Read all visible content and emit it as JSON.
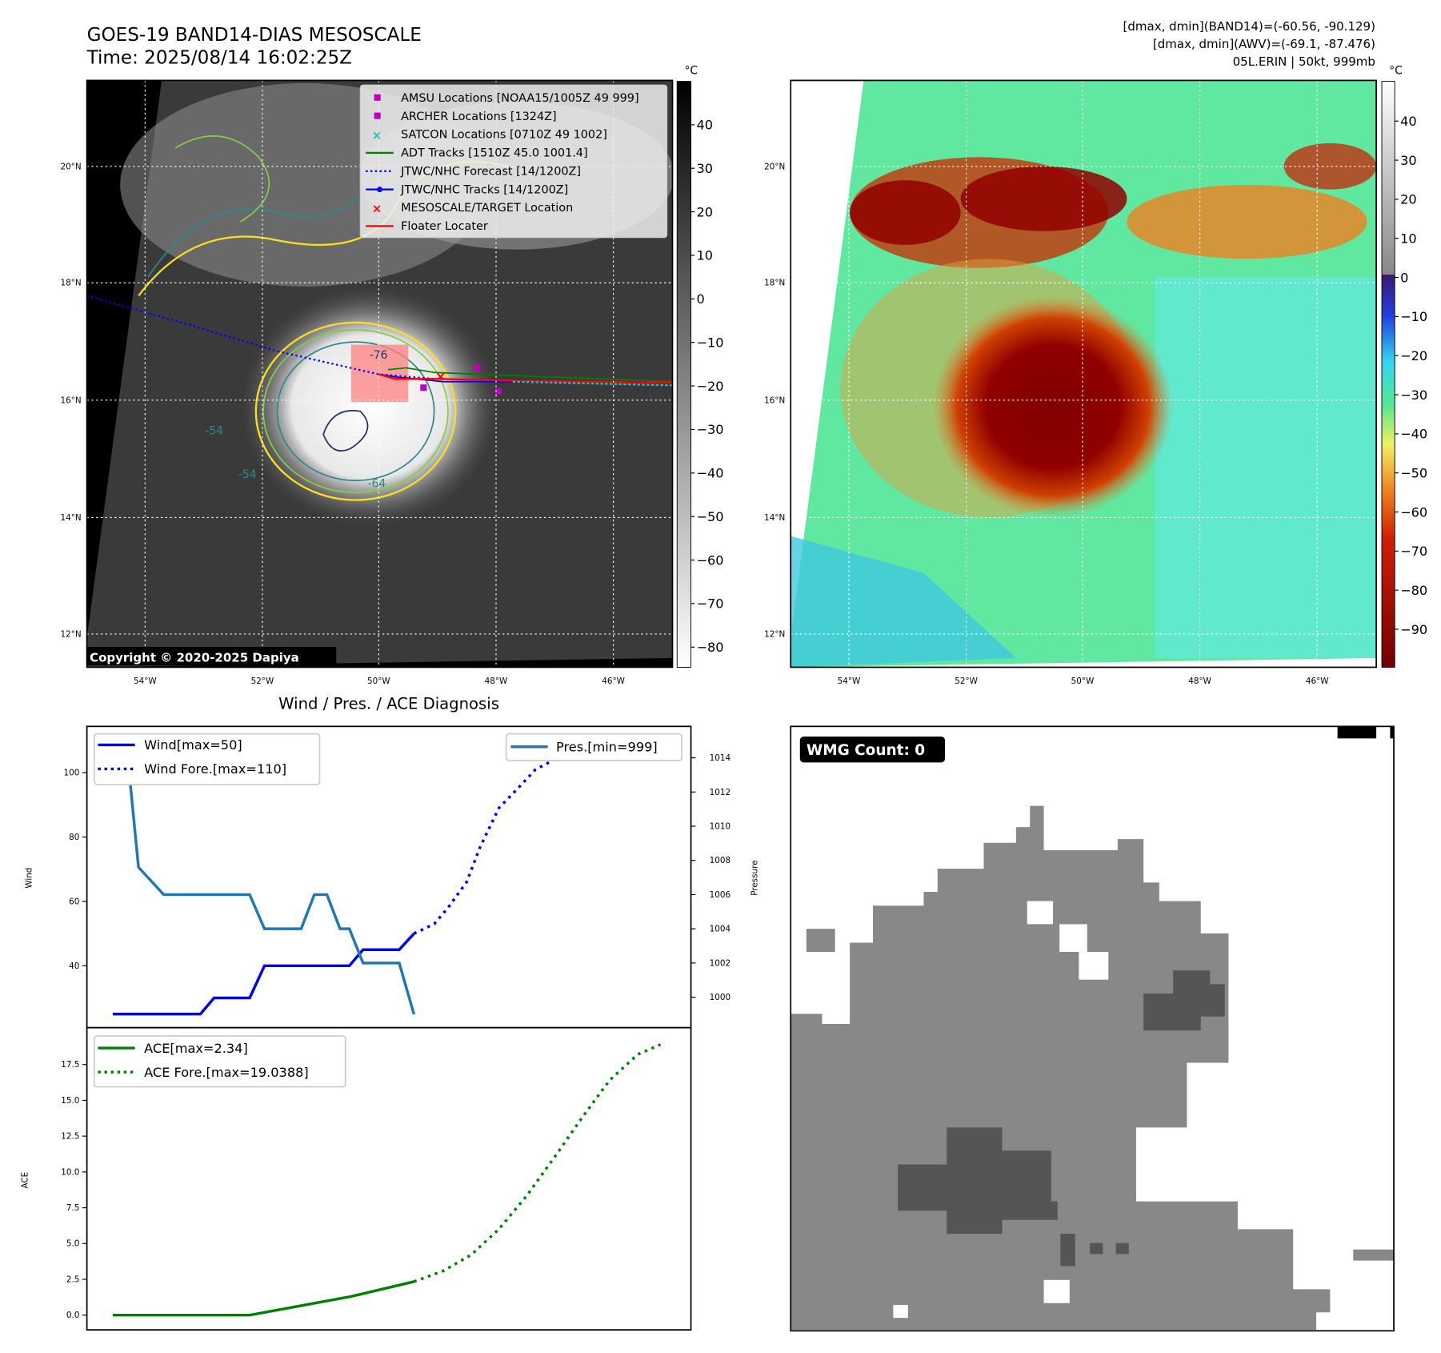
{
  "header": {
    "title": "GOES-19 BAND14-DIAS MESOSCALE",
    "time": "Time: 2025/08/14 16:02:25Z",
    "stats_band14": "[dmax, dmin](BAND14)=(-60.56, -90.129)",
    "stats_awv": "[dmax, dmin](AWV)=(-69.1, -87.476)",
    "storm": "05L.ERIN | 50kt, 999mb"
  },
  "map": {
    "lat_labels": [
      "20°N",
      "18°N",
      "16°N",
      "14°N",
      "12°N"
    ],
    "lon_labels": [
      "54°W",
      "52°W",
      "50°W",
      "48°W",
      "46°W"
    ],
    "colorbar_unit": "°C",
    "colorbar_left_ticks": [
      "40",
      "30",
      "20",
      "10",
      "0",
      "−10",
      "−20",
      "−30",
      "−40",
      "−50",
      "−60",
      "−70",
      "−80"
    ],
    "colorbar_right_ticks": [
      "40",
      "30",
      "20",
      "10",
      "0",
      "−10",
      "−20",
      "−30",
      "−40",
      "−50",
      "−60",
      "−70",
      "−80",
      "−90"
    ],
    "contour_labels": [
      "-76",
      "-54",
      "-54",
      "-64"
    ],
    "copyright": "Copyright © 2020-2025 Dapiya",
    "legend": [
      {
        "label": "AMSU Locations [NOAA15/1005Z 49 999]",
        "color": "#c000c0",
        "marker": "square"
      },
      {
        "label": "ARCHER Locations [1324Z]",
        "color": "#c000c0",
        "marker": "square"
      },
      {
        "label": "SATCON Locations [0710Z 49 1002]",
        "color": "#20c0c0",
        "marker": "x"
      },
      {
        "label": "ADT Tracks [1510Z 45.0 1001.4]",
        "color": "#008000",
        "marker": "line"
      },
      {
        "label": "JTWC/NHC Forecast [14/1200Z]",
        "color": "#0000ff",
        "marker": "dotted"
      },
      {
        "label": "JTWC/NHC Tracks [14/1200Z]",
        "color": "#0000ff",
        "marker": "line-dot"
      },
      {
        "label": "MESOSCALE/TARGET Location",
        "color": "#ff0000",
        "marker": "x"
      },
      {
        "label": "Floater Locater",
        "color": "#ff0000",
        "marker": "line"
      }
    ]
  },
  "chart_data": [
    {
      "type": "line",
      "title": "Wind / Pres. / ACE Diagnosis",
      "ylabel": "Wind",
      "y2label": "Pressure",
      "ylim": [
        20,
        114
      ],
      "y2lim": [
        998.9,
        1015.5
      ],
      "xlim": [
        0,
        100
      ],
      "yticks": [
        "40",
        "60",
        "80",
        "100"
      ],
      "y2ticks": [
        "1000",
        "1002",
        "1004",
        "1006",
        "1008",
        "1010",
        "1012",
        "1014"
      ],
      "series": [
        {
          "name": "Wind[max=50]",
          "axis": "left",
          "style": "solid",
          "color": "#0000ff",
          "x": [
            0,
            16,
            18.5,
            25,
            27.7,
            43.2,
            45.7,
            52.3,
            55
          ],
          "y": [
            25,
            25,
            30,
            30,
            40,
            40,
            45,
            45,
            50
          ]
        },
        {
          "name": "Wind Fore.[max=110]",
          "axis": "left",
          "style": "dotted",
          "color": "#0000ff",
          "x": [
            55,
            58.7,
            61.2,
            64.6,
            67.1,
            70.5,
            73.9,
            77.2,
            80.6,
            84.8,
            89,
            91.6
          ],
          "y": [
            50,
            53,
            58,
            66,
            77,
            89,
            95,
            101,
            104,
            105,
            105,
            106
          ]
        },
        {
          "name": "Pres.[min=999]",
          "axis": "right",
          "style": "solid",
          "color": "#1f77b4",
          "x": [
            0,
            2.4,
            4.7,
            9.3,
            25,
            27.7,
            34.4,
            36.8,
            39.1,
            41.5,
            43.2,
            45.7,
            52.3,
            55
          ],
          "y": [
            1015.1,
            1015.1,
            1007.6,
            1006,
            1006,
            1004,
            1004,
            1006,
            1006,
            1004,
            1004,
            1002,
            1002,
            999
          ]
        }
      ]
    },
    {
      "type": "line",
      "ylabel": "ACE",
      "ylim": [
        -1,
        19.5
      ],
      "xlim": [
        0,
        100
      ],
      "yticks": [
        "0.0",
        "2.5",
        "5.0",
        "7.5",
        "10.0",
        "12.5",
        "15.0",
        "17.5"
      ],
      "series": [
        {
          "name": "ACE[max=2.34]",
          "style": "solid",
          "color": "#008000",
          "x": [
            0,
            25,
            43.5,
            55
          ],
          "y": [
            0,
            0,
            1.3,
            2.34
          ]
        },
        {
          "name": "ACE Fore.[max=19.0388]",
          "style": "dotted",
          "color": "#008000",
          "x": [
            55,
            60.4,
            65.4,
            70.5,
            75.5,
            80.6,
            85.7,
            90.7,
            95.8,
            100
          ],
          "y": [
            2.34,
            3.1,
            4.2,
            6,
            8.3,
            11,
            13.8,
            16.4,
            18.2,
            18.9
          ]
        }
      ]
    }
  ],
  "wmg": {
    "label": "WMG Count: 0"
  }
}
